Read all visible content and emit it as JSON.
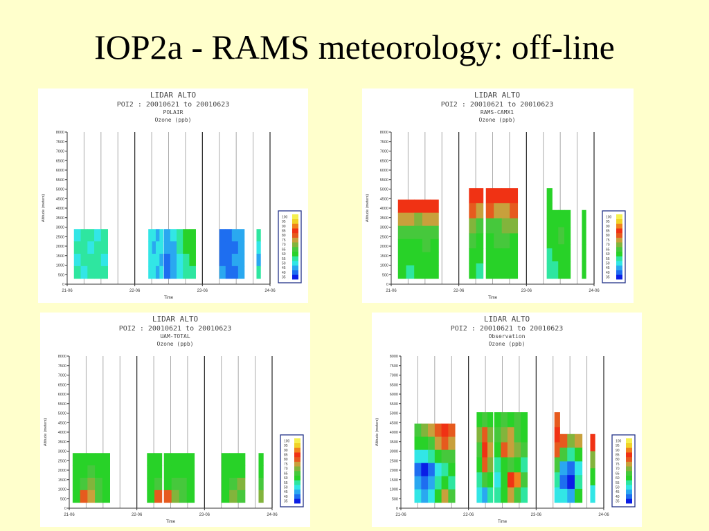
{
  "slide": {
    "title": "IOP2a - RAMS meteorology: off-line"
  },
  "colors": {
    "background": "#ffffcc",
    "scale": [
      "#0a1ee6",
      "#1e6ef0",
      "#2aa8f0",
      "#32e6e6",
      "#2ee6a0",
      "#28d228",
      "#46c83c",
      "#82b43c",
      "#c8a03c",
      "#e65a1e",
      "#f03214",
      "#f0821e",
      "#f0d228",
      "#f5f050",
      "#fafa8c"
    ]
  },
  "chart_data": [
    {
      "type": "heatmap",
      "title": "LIDAR  ALTO",
      "subtitle": "POI2 : 20010621 to 20010623",
      "model": "POLAIR",
      "variable": "Ozone (ppb)",
      "xlabel": "Time",
      "ylabel": "Altitude (meters)",
      "x_ticks": [
        "21-06",
        "22-06",
        "23-06",
        "24-06"
      ],
      "y_ticks": [
        0,
        500,
        1000,
        1500,
        2000,
        2500,
        3000,
        3500,
        4000,
        4500,
        5000,
        5500,
        6000,
        6500,
        7000,
        7500,
        8000
      ],
      "ylim": [
        0,
        8000
      ],
      "legend": {
        "levels": [
          35,
          40,
          45,
          50,
          55,
          60,
          65,
          70,
          75,
          80,
          85,
          90,
          95,
          100
        ]
      },
      "blocks": [
        {
          "t0": 21.1,
          "t1": 21.6,
          "z0": 300,
          "z1": 2900,
          "fill": [
            [
              3,
              4,
              4,
              3,
              4
            ],
            [
              4,
              4,
              3,
              4,
              4
            ],
            [
              3,
              4,
              4,
              4,
              3
            ],
            [
              4,
              3,
              4,
              4,
              4
            ]
          ]
        },
        {
          "t0": 22.2,
          "t1": 22.42,
          "z0": 300,
          "z1": 2900,
          "fill": [
            [
              3,
              3,
              2,
              3
            ],
            [
              3,
              2,
              3,
              3
            ],
            [
              3,
              3,
              3,
              2
            ],
            [
              3,
              3,
              2,
              3
            ]
          ]
        },
        {
          "t0": 22.43,
          "t1": 22.9,
          "z0": 300,
          "z1": 2900,
          "fill": [
            [
              2,
              3,
              4,
              5,
              5
            ],
            [
              2,
              2,
              4,
              5,
              5
            ],
            [
              1,
              2,
              3,
              4,
              5
            ],
            [
              1,
              2,
              3,
              4,
              4
            ]
          ]
        },
        {
          "t0": 23.25,
          "t1": 23.62,
          "z0": 300,
          "z1": 2900,
          "fill": [
            [
              1,
              1,
              2,
              2
            ],
            [
              1,
              1,
              1,
              2
            ],
            [
              1,
              1,
              2,
              2
            ],
            [
              2,
              1,
              1,
              2
            ]
          ]
        },
        {
          "t0": 23.8,
          "t1": 23.86,
          "z0": 300,
          "z1": 2900,
          "fill": [
            [
              4
            ],
            [
              3
            ],
            [
              2
            ],
            [
              4
            ]
          ]
        }
      ]
    },
    {
      "type": "heatmap",
      "title": "LIDAR  ALTO",
      "subtitle": "POI2 : 20010621 to 20010623",
      "model": "RAMS-CAMX1",
      "variable": "Ozone (ppb)",
      "xlabel": "Time",
      "ylabel": "Altitude (meters)",
      "x_ticks": [
        "21-06",
        "22-06",
        "23-06",
        "24-06"
      ],
      "y_ticks": [
        0,
        500,
        1000,
        1500,
        2000,
        2500,
        3000,
        3500,
        4000,
        4500,
        5000,
        5500,
        6000,
        6500,
        7000,
        7500,
        8000
      ],
      "ylim": [
        0,
        8000
      ],
      "legend": {
        "levels": [
          35,
          40,
          45,
          50,
          55,
          60,
          65,
          70,
          75,
          80,
          85,
          90,
          95,
          100
        ]
      },
      "blocks": [
        {
          "t0": 21.1,
          "t1": 21.7,
          "z0": 300,
          "z1": 4450,
          "fill": [
            [
              10,
              10,
              10,
              10,
              10
            ],
            [
              8,
              8,
              7,
              8,
              8
            ],
            [
              6,
              6,
              6,
              6,
              6
            ],
            [
              5,
              5,
              5,
              6,
              5
            ],
            [
              5,
              5,
              5,
              5,
              5
            ],
            [
              5,
              4,
              5,
              5,
              5
            ]
          ]
        },
        {
          "t0": 22.15,
          "t1": 22.36,
          "z0": 300,
          "z1": 5050,
          "fill": [
            [
              10,
              10
            ],
            [
              9,
              8
            ],
            [
              7,
              6
            ],
            [
              6,
              5
            ],
            [
              5,
              5
            ],
            [
              5,
              4
            ]
          ]
        },
        {
          "t0": 22.4,
          "t1": 22.87,
          "z0": 300,
          "z1": 5050,
          "fill": [
            [
              10,
              10,
              10,
              10
            ],
            [
              9,
              8,
              8,
              9
            ],
            [
              6,
              6,
              7,
              7
            ],
            [
              5,
              6,
              6,
              5
            ],
            [
              5,
              5,
              5,
              5
            ],
            [
              5,
              5,
              5,
              5
            ]
          ]
        },
        {
          "t0": 23.3,
          "t1": 23.38,
          "z0": 300,
          "z1": 5050,
          "fill": [
            [
              5
            ],
            [
              5
            ],
            [
              5
            ],
            [
              5
            ],
            [
              4
            ],
            [
              4
            ]
          ]
        },
        {
          "t0": 23.38,
          "t1": 23.65,
          "z0": 300,
          "z1": 3900,
          "fill": [
            [
              5,
              5,
              5
            ],
            [
              5,
              6,
              5
            ],
            [
              5,
              5,
              5
            ],
            [
              4,
              5,
              5
            ]
          ]
        },
        {
          "t0": 23.82,
          "t1": 23.88,
          "z0": 300,
          "z1": 3900,
          "fill": [
            [
              5
            ],
            [
              5
            ],
            [
              5
            ],
            [
              5
            ]
          ]
        }
      ]
    },
    {
      "type": "heatmap",
      "title": "LIDAR  ALTO",
      "subtitle": "POI2 : 20010621 to 20010623",
      "model": "UAM-TOTAL",
      "variable": "Ozone (ppb)",
      "xlabel": "Time",
      "ylabel": "Altitude (meters)",
      "x_ticks": [
        "21-06",
        "22-06",
        "23-06",
        "24-06"
      ],
      "y_ticks": [
        0,
        500,
        1000,
        1500,
        2000,
        2500,
        3000,
        3500,
        4000,
        4500,
        5000,
        5500,
        6000,
        6500,
        7000,
        7500,
        8000
      ],
      "ylim": [
        0,
        8000
      ],
      "legend": {
        "levels": [
          35,
          40,
          45,
          50,
          55,
          60,
          65,
          70,
          75,
          80,
          85,
          90,
          95,
          100
        ]
      },
      "blocks": [
        {
          "t0": 21.05,
          "t1": 21.6,
          "z0": 300,
          "z1": 2900,
          "fill": [
            [
              5,
              5,
              5,
              5,
              5
            ],
            [
              5,
              5,
              6,
              5,
              5
            ],
            [
              5,
              6,
              7,
              6,
              5
            ],
            [
              5,
              9,
              8,
              6,
              5
            ]
          ]
        },
        {
          "t0": 22.15,
          "t1": 22.37,
          "z0": 300,
          "z1": 2900,
          "fill": [
            [
              5,
              5
            ],
            [
              5,
              5
            ],
            [
              5,
              6
            ],
            [
              5,
              9
            ]
          ]
        },
        {
          "t0": 22.4,
          "t1": 22.85,
          "z0": 300,
          "z1": 2900,
          "fill": [
            [
              5,
              5,
              5,
              5
            ],
            [
              5,
              5,
              5,
              5
            ],
            [
              5,
              6,
              6,
              5
            ],
            [
              9,
              7,
              6,
              5
            ]
          ]
        },
        {
          "t0": 23.25,
          "t1": 23.6,
          "z0": 300,
          "z1": 2900,
          "fill": [
            [
              5,
              5,
              5
            ],
            [
              5,
              5,
              5
            ],
            [
              5,
              6,
              7
            ],
            [
              5,
              7,
              6
            ]
          ]
        },
        {
          "t0": 23.8,
          "t1": 23.87,
          "z0": 300,
          "z1": 2900,
          "fill": [
            [
              5
            ],
            [
              5
            ],
            [
              6
            ],
            [
              7
            ]
          ]
        }
      ]
    },
    {
      "type": "heatmap",
      "title": "LIDAR  ALTO",
      "subtitle": "POI2 : 20010621 to 20010623",
      "model": "Observation",
      "variable": "Ozone (ppb)",
      "xlabel": "Time",
      "ylabel": "Altitude (meters)",
      "x_ticks": [
        "21-06",
        "22-06",
        "23-06",
        "24-06"
      ],
      "y_ticks": [
        0,
        500,
        1000,
        1500,
        2000,
        2500,
        3000,
        3500,
        4000,
        4500,
        5000,
        5500,
        6000,
        6500,
        7000,
        7500,
        8000
      ],
      "ylim": [
        0,
        8000
      ],
      "legend": {
        "levels": [
          35,
          40,
          45,
          50,
          55,
          60,
          65,
          70,
          75,
          80,
          85,
          90,
          95,
          100
        ]
      },
      "blocks": [
        {
          "t0": 21.2,
          "t1": 21.8,
          "z0": 300,
          "z1": 4450,
          "fill": [
            [
              6,
              7,
              8,
              9,
              10,
              9
            ],
            [
              5,
              5,
              6,
              8,
              9,
              8
            ],
            [
              3,
              3,
              4,
              5,
              6,
              6
            ],
            [
              1,
              0,
              1,
              3,
              4,
              5
            ],
            [
              2,
              1,
              2,
              4,
              5,
              4
            ],
            [
              3,
              2,
              3,
              5,
              8,
              6
            ]
          ]
        },
        {
          "t0": 22.12,
          "t1": 22.36,
          "z0": 300,
          "z1": 5050,
          "fill": [
            [
              5,
              6,
              5
            ],
            [
              7,
              9,
              7
            ],
            [
              6,
              10,
              8
            ],
            [
              5,
              9,
              7
            ],
            [
              4,
              6,
              5
            ],
            [
              3,
              2,
              4
            ]
          ]
        },
        {
          "t0": 22.38,
          "t1": 22.87,
          "z0": 300,
          "z1": 5050,
          "fill": [
            [
              5,
              6,
              5,
              6,
              5
            ],
            [
              6,
              7,
              8,
              6,
              5
            ],
            [
              5,
              9,
              8,
              7,
              6
            ],
            [
              4,
              5,
              6,
              5,
              4
            ],
            [
              3,
              5,
              10,
              11,
              6
            ],
            [
              4,
              5,
              8,
              6,
              4
            ]
          ]
        },
        {
          "t0": 23.27,
          "t1": 23.35,
          "z0": 300,
          "z1": 5050,
          "fill": [
            [
              9
            ],
            [
              10
            ],
            [
              9
            ],
            [
              6
            ],
            [
              4
            ],
            [
              3
            ]
          ]
        },
        {
          "t0": 23.35,
          "t1": 23.68,
          "z0": 300,
          "z1": 3900,
          "fill": [
            [
              9,
              7,
              8
            ],
            [
              6,
              4,
              5
            ],
            [
              2,
              1,
              3
            ],
            [
              1,
              0,
              4
            ],
            [
              3,
              2,
              5
            ]
          ]
        },
        {
          "t0": 23.8,
          "t1": 23.87,
          "z0": 300,
          "z1": 3900,
          "fill": [
            [
              10
            ],
            [
              7
            ],
            [
              5
            ],
            [
              3
            ]
          ]
        }
      ]
    }
  ]
}
